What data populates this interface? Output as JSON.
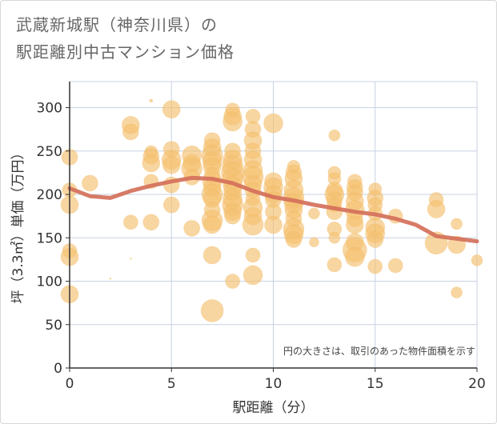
{
  "title_line1": "武蔵新城駅（神奈川県）の",
  "title_line2": "駅距離別中古マンション価格",
  "chart_data": {
    "type": "scatter",
    "title": "武蔵新城駅（神奈川県）の駅距離別中古マンション価格",
    "xlabel": "駅距離（分）",
    "ylabel": "坪（3.3㎡）単価（万円）",
    "xlim": [
      0,
      20
    ],
    "ylim": [
      0,
      330
    ],
    "xticks": [
      0,
      5,
      10,
      15,
      20
    ],
    "yticks": [
      0,
      50,
      100,
      150,
      200,
      250,
      300
    ],
    "grid": true,
    "note": "円の大きさは、取引のあった物件面積を示す",
    "colors": {
      "bubble": "#f5c06f",
      "line": "#d4705a",
      "axis": "#333333",
      "grid": "#c8d2e2"
    },
    "series": [
      {
        "kind": "bubble",
        "points": [
          [
            0,
            243,
            10
          ],
          [
            0,
            205,
            9
          ],
          [
            0,
            188,
            11
          ],
          [
            0,
            135,
            9
          ],
          [
            0,
            128,
            11
          ],
          [
            0,
            85,
            11
          ],
          [
            1,
            213,
            10
          ],
          [
            2,
            103,
            1
          ],
          [
            3,
            280,
            11
          ],
          [
            3,
            272,
            10
          ],
          [
            3,
            168,
            9
          ],
          [
            3,
            126,
            1
          ],
          [
            4,
            308,
            2
          ],
          [
            4,
            249,
            8
          ],
          [
            4,
            244,
            10
          ],
          [
            4,
            236,
            11
          ],
          [
            4,
            215,
            9
          ],
          [
            4,
            168,
            10
          ],
          [
            5,
            298,
            11
          ],
          [
            5,
            252,
            10
          ],
          [
            5,
            240,
            12
          ],
          [
            5,
            234,
            11
          ],
          [
            5,
            211,
            10
          ],
          [
            5,
            188,
            10
          ],
          [
            6,
            245,
            12
          ],
          [
            6,
            236,
            11
          ],
          [
            6,
            230,
            13
          ],
          [
            6,
            220,
            10
          ],
          [
            6,
            161,
            10
          ],
          [
            7,
            262,
            10
          ],
          [
            7,
            254,
            11
          ],
          [
            7,
            245,
            13
          ],
          [
            7,
            238,
            12
          ],
          [
            7,
            232,
            11
          ],
          [
            7,
            222,
            10
          ],
          [
            7,
            215,
            12
          ],
          [
            7,
            208,
            11
          ],
          [
            7,
            200,
            13
          ],
          [
            7,
            195,
            11
          ],
          [
            7,
            182,
            10
          ],
          [
            7,
            170,
            13
          ],
          [
            7,
            165,
            11
          ],
          [
            7,
            130,
            11
          ],
          [
            7,
            66,
            14
          ],
          [
            8,
            297,
            9
          ],
          [
            8,
            290,
            11
          ],
          [
            8,
            284,
            12
          ],
          [
            8,
            250,
            10
          ],
          [
            8,
            240,
            12
          ],
          [
            8,
            233,
            13
          ],
          [
            8,
            225,
            14
          ],
          [
            8,
            218,
            13
          ],
          [
            8,
            210,
            12
          ],
          [
            8,
            203,
            11
          ],
          [
            8,
            195,
            12
          ],
          [
            8,
            188,
            13
          ],
          [
            8,
            180,
            11
          ],
          [
            8,
            175,
            10
          ],
          [
            8,
            100,
            9
          ],
          [
            9,
            290,
            9
          ],
          [
            9,
            275,
            10
          ],
          [
            9,
            262,
            11
          ],
          [
            9,
            250,
            10
          ],
          [
            9,
            240,
            11
          ],
          [
            9,
            228,
            12
          ],
          [
            9,
            220,
            13
          ],
          [
            9,
            212,
            11
          ],
          [
            9,
            205,
            10
          ],
          [
            9,
            195,
            9
          ],
          [
            9,
            185,
            12
          ],
          [
            9,
            175,
            11
          ],
          [
            9,
            165,
            13
          ],
          [
            9,
            130,
            9
          ],
          [
            9,
            107,
            12
          ],
          [
            10,
            282,
            12
          ],
          [
            10,
            215,
            11
          ],
          [
            10,
            208,
            12
          ],
          [
            10,
            200,
            11
          ],
          [
            10,
            194,
            10
          ],
          [
            10,
            180,
            10
          ],
          [
            10,
            165,
            11
          ],
          [
            11,
            232,
            8
          ],
          [
            11,
            225,
            10
          ],
          [
            11,
            218,
            11
          ],
          [
            11,
            205,
            12
          ],
          [
            11,
            196,
            13
          ],
          [
            11,
            190,
            12
          ],
          [
            11,
            182,
            11
          ],
          [
            11,
            172,
            10
          ],
          [
            11,
            160,
            13
          ],
          [
            11,
            154,
            12
          ],
          [
            11,
            148,
            10
          ],
          [
            12,
            178,
            7
          ],
          [
            12,
            145,
            6
          ],
          [
            13,
            268,
            7
          ],
          [
            13,
            225,
            8
          ],
          [
            13,
            218,
            8
          ],
          [
            13,
            205,
            10
          ],
          [
            13,
            200,
            12
          ],
          [
            13,
            194,
            10
          ],
          [
            13,
            188,
            9
          ],
          [
            13,
            180,
            10
          ],
          [
            13,
            160,
            9
          ],
          [
            13,
            150,
            7
          ],
          [
            13,
            119,
            9
          ],
          [
            14,
            215,
            9
          ],
          [
            14,
            208,
            10
          ],
          [
            14,
            202,
            10
          ],
          [
            14,
            192,
            11
          ],
          [
            14,
            182,
            12
          ],
          [
            14,
            172,
            10
          ],
          [
            14,
            165,
            11
          ],
          [
            14,
            145,
            11
          ],
          [
            14,
            136,
            15
          ],
          [
            14,
            128,
            12
          ],
          [
            15,
            206,
            8
          ],
          [
            15,
            196,
            10
          ],
          [
            15,
            188,
            9
          ],
          [
            15,
            178,
            9
          ],
          [
            15,
            162,
            12
          ],
          [
            15,
            155,
            12
          ],
          [
            15,
            148,
            10
          ],
          [
            15,
            117,
            9
          ],
          [
            16,
            175,
            9
          ],
          [
            16,
            118,
            9
          ],
          [
            18,
            194,
            9
          ],
          [
            18,
            183,
            11
          ],
          [
            18,
            144,
            14
          ],
          [
            19,
            166,
            7
          ],
          [
            19,
            142,
            11
          ],
          [
            19,
            87,
            7
          ],
          [
            20,
            124,
            7
          ]
        ]
      },
      {
        "kind": "line",
        "name": "",
        "x": [
          0,
          1,
          2,
          3,
          4,
          5,
          6,
          7,
          8,
          9,
          10,
          11,
          12,
          13,
          14,
          15,
          16,
          17,
          18,
          19,
          20
        ],
        "y": [
          207,
          198,
          196,
          204,
          210,
          215,
          219,
          218,
          213,
          204,
          197,
          193,
          188,
          184,
          180,
          177,
          172,
          165,
          152,
          149,
          146
        ]
      }
    ]
  }
}
